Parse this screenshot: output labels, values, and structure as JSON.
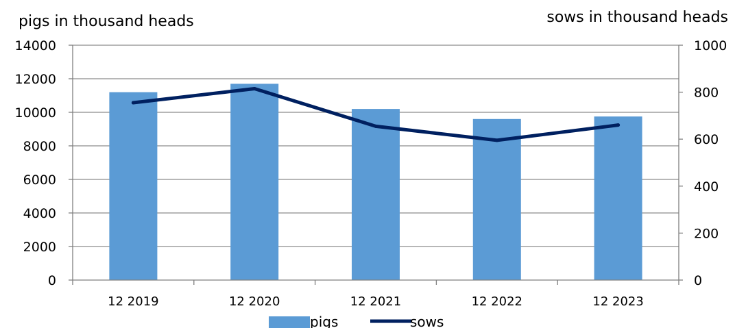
{
  "chart_data": {
    "type": "bar",
    "categories": [
      "12 2019",
      "12 2020",
      "12 2021",
      "12 2022",
      "12 2023"
    ],
    "series": [
      {
        "name": "pigs",
        "type": "bar",
        "axis": "left",
        "color": "#5b9bd5",
        "values": [
          11200,
          11700,
          10200,
          9600,
          9750
        ]
      },
      {
        "name": "sows",
        "type": "line",
        "axis": "right",
        "color": "#002060",
        "values": [
          755,
          815,
          655,
          595,
          660
        ]
      }
    ],
    "y_left": {
      "label": "pigs in thousand heads",
      "ylim": [
        0,
        14000
      ],
      "ticks": [
        0,
        2000,
        4000,
        6000,
        8000,
        10000,
        12000,
        14000
      ]
    },
    "y_right": {
      "label": "sows in thousand heads",
      "ylim": [
        0,
        1000
      ],
      "ticks": [
        0,
        200,
        400,
        600,
        800,
        1000
      ]
    },
    "grid": true,
    "legend_position": "bottom-center",
    "title": "",
    "xlabel": ""
  }
}
